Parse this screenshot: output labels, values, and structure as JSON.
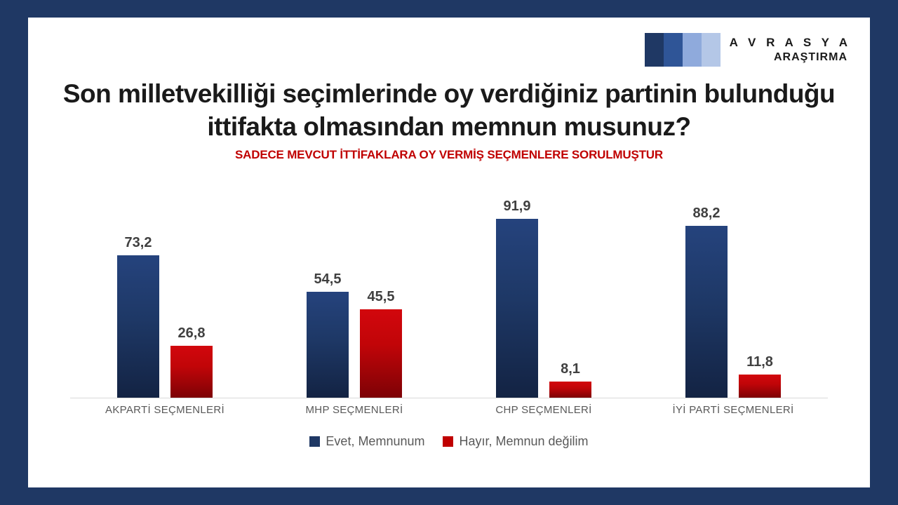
{
  "frame": {
    "border_color": "#1F3864",
    "card_color": "#FFFFFF"
  },
  "logo": {
    "squares": [
      "#1F3864",
      "#2F5597",
      "#8FAADC",
      "#B4C7E7"
    ],
    "line1": "A V R A S Y A",
    "line2": "ARAŞTIRMA"
  },
  "title": {
    "line1": "Son milletvekilliği seçimlerinde oy verdiğiniz partinin bulunduğu",
    "line2": "ittifakta olmasından memnun musunuz?"
  },
  "subtitle": "SADECE MEVCUT İTTİFAKLARA OY VERMİŞ SEÇMENLERE SORULMUŞTUR",
  "chart_data": {
    "type": "bar",
    "title": "Son milletvekilliği seçimlerinde oy verdiğiniz partinin bulunduğu ittifakta olmasından memnun musunuz?",
    "subtitle": "SADECE MEVCUT İTTİFAKLARA OY VERMİŞ SEÇMENLERE SORULMUŞTUR",
    "categories": [
      "AKPARTİ SEÇMENLERİ",
      "MHP SEÇMENLERİ",
      "CHP SEÇMENLERİ",
      "İYİ PARTİ SEÇMENLERİ"
    ],
    "series": [
      {
        "name": "Evet, Memnunum",
        "color": "#1F3864",
        "values": [
          73.2,
          54.5,
          91.9,
          88.2
        ],
        "labels": [
          "73,2",
          "54,5",
          "91,9",
          "88,2"
        ]
      },
      {
        "name": "Hayır, Memnun değilim",
        "color": "#C00000",
        "values": [
          26.8,
          45.5,
          8.1,
          11.8
        ],
        "labels": [
          "26,8",
          "45,5",
          "8,1",
          "11,8"
        ]
      }
    ],
    "xlabel": "",
    "ylabel": "",
    "ylim": [
      0,
      100
    ],
    "grid": false,
    "legend_position": "bottom",
    "data_labels": true
  }
}
